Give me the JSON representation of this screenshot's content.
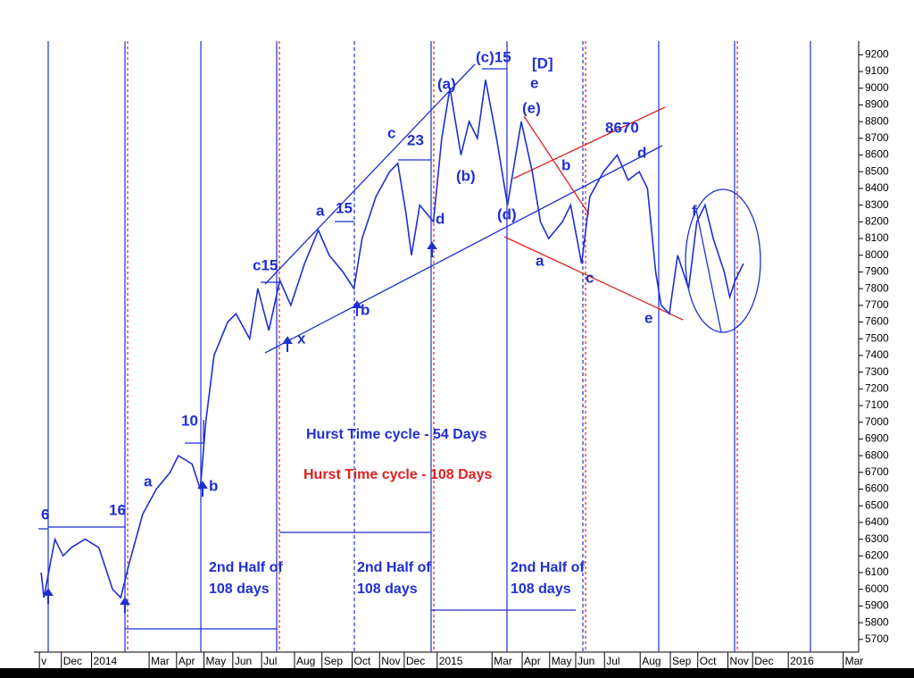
{
  "chart_data": {
    "type": "line",
    "x": [
      2,
      3,
      7,
      10,
      13,
      18,
      23,
      28,
      31,
      34,
      39,
      44,
      49,
      52,
      57,
      60,
      62,
      65,
      70,
      73,
      78,
      81,
      85,
      89,
      93,
      98,
      103,
      107,
      112,
      116,
      119,
      124,
      129,
      132,
      135,
      137,
      140,
      145,
      148,
      151,
      155,
      158,
      161,
      164,
      168,
      172,
      177,
      181,
      184,
      187,
      192,
      195,
      199,
      202,
      207,
      212,
      216,
      220,
      223,
      226,
      228,
      231,
      234,
      238,
      241,
      244,
      247,
      251,
      253,
      255,
      258
    ],
    "values": [
      6100,
      5950,
      6300,
      6200,
      6250,
      6300,
      6250,
      6000,
      5950,
      6150,
      6450,
      6600,
      6700,
      6800,
      6750,
      6600,
      7000,
      7400,
      7600,
      7650,
      7500,
      7800,
      7550,
      7850,
      7700,
      7950,
      8150,
      8000,
      7900,
      7800,
      8100,
      8350,
      8500,
      8550,
      8250,
      8000,
      8300,
      8200,
      8700,
      9000,
      8600,
      8800,
      8700,
      9050,
      8700,
      8300,
      8800,
      8500,
      8200,
      8100,
      8200,
      8300,
      7950,
      8350,
      8500,
      8600,
      8450,
      8500,
      8400,
      7900,
      7700,
      7650,
      8000,
      7800,
      8200,
      8300,
      8100,
      7900,
      7750,
      7850,
      7950
    ],
    "color": "#1f2fd0",
    "xlim": [
      0,
      300
    ],
    "xticks": [
      {
        "value": 2,
        "label": "v"
      },
      {
        "value": 10,
        "label": "Dec"
      },
      {
        "value": 21,
        "label": "2014"
      },
      {
        "value": 42,
        "label": "Mar"
      },
      {
        "value": 52,
        "label": "Apr"
      },
      {
        "value": 62,
        "label": "May"
      },
      {
        "value": 72.5,
        "label": "Jun"
      },
      {
        "value": 83,
        "label": "Jul"
      },
      {
        "value": 95,
        "label": "Aug"
      },
      {
        "value": 105,
        "label": "Sep"
      },
      {
        "value": 116,
        "label": "Oct"
      },
      {
        "value": 126,
        "label": "Nov"
      },
      {
        "value": 135,
        "label": "Dec"
      },
      {
        "value": 147,
        "label": "2015"
      },
      {
        "value": 167,
        "label": "Mar"
      },
      {
        "value": 178,
        "label": "Apr"
      },
      {
        "value": 188,
        "label": "May"
      },
      {
        "value": 197.5,
        "label": "Jun"
      },
      {
        "value": 208,
        "label": "Jul"
      },
      {
        "value": 221,
        "label": "Aug"
      },
      {
        "value": 232,
        "label": "Sep"
      },
      {
        "value": 242,
        "label": "Oct"
      },
      {
        "value": 253,
        "label": "Nov"
      },
      {
        "value": 262,
        "label": "Dec"
      },
      {
        "value": 275,
        "label": "2016"
      },
      {
        "value": 295,
        "label": "Mar"
      }
    ],
    "ylim": [
      5640,
      9250
    ],
    "yticks": [
      5700,
      5800,
      5900,
      6000,
      6100,
      6200,
      6300,
      6400,
      6500,
      6600,
      6700,
      6800,
      6900,
      7000,
      7100,
      7200,
      7300,
      7400,
      7500,
      7600,
      7700,
      7800,
      7900,
      8000,
      8100,
      8200,
      8300,
      8400,
      8500,
      8600,
      8700,
      8800,
      8900,
      9000,
      9100,
      9200
    ],
    "annotations": [
      {
        "text": "6",
        "color": "#1f2fd0"
      },
      {
        "text": "16",
        "color": "#1f2fd0"
      },
      {
        "text": "a",
        "color": "#1f2fd0"
      },
      {
        "text": "b",
        "color": "#1f2fd0"
      },
      {
        "text": "10",
        "color": "#1f2fd0"
      },
      {
        "text": "c15",
        "color": "#1f2fd0"
      },
      {
        "text": "x",
        "color": "#1f2fd0"
      },
      {
        "text": "a",
        "color": "#1f2fd0"
      },
      {
        "text": "15",
        "color": "#1f2fd0"
      },
      {
        "text": "b",
        "color": "#1f2fd0"
      },
      {
        "text": "c",
        "color": "#1f2fd0"
      },
      {
        "text": "23",
        "color": "#1f2fd0"
      },
      {
        "text": "d",
        "color": "#1f2fd0"
      },
      {
        "text": "(a)",
        "color": "#1f2fd0"
      },
      {
        "text": "(c)15",
        "color": "#1f2fd0"
      },
      {
        "text": "[D]",
        "color": "#1f2fd0"
      },
      {
        "text": "e",
        "color": "#1f2fd0"
      },
      {
        "text": "(b)",
        "color": "#1f2fd0"
      },
      {
        "text": "(e)",
        "color": "#1f2fd0"
      },
      {
        "text": "(d)",
        "color": "#1f2fd0"
      },
      {
        "text": "8670",
        "color": "#1f2fd0"
      },
      {
        "text": "b",
        "color": "#1f2fd0"
      },
      {
        "text": "d",
        "color": "#1f2fd0"
      },
      {
        "text": "a",
        "color": "#1f2fd0"
      },
      {
        "text": "c",
        "color": "#1f2fd0"
      },
      {
        "text": "e",
        "color": "#1f2fd0"
      },
      {
        "text": "f",
        "color": "#1f2fd0"
      },
      {
        "text": "Hurst Time cycle - 54 Days",
        "color": "#1f2fd0"
      },
      {
        "text": "Hurst Time cycle - 108 Days",
        "color": "#e02020"
      },
      {
        "text": "2nd Half of",
        "color": "#1f2fd0"
      },
      {
        "text": "108 days",
        "color": "#1f2fd0"
      },
      {
        "text": "2nd Half of",
        "color": "#1f2fd0"
      },
      {
        "text": "108 days",
        "color": "#1f2fd0"
      },
      {
        "text": "2nd Half of",
        "color": "#1f2fd0"
      },
      {
        "text": "108 days",
        "color": "#1f2fd0"
      }
    ]
  }
}
